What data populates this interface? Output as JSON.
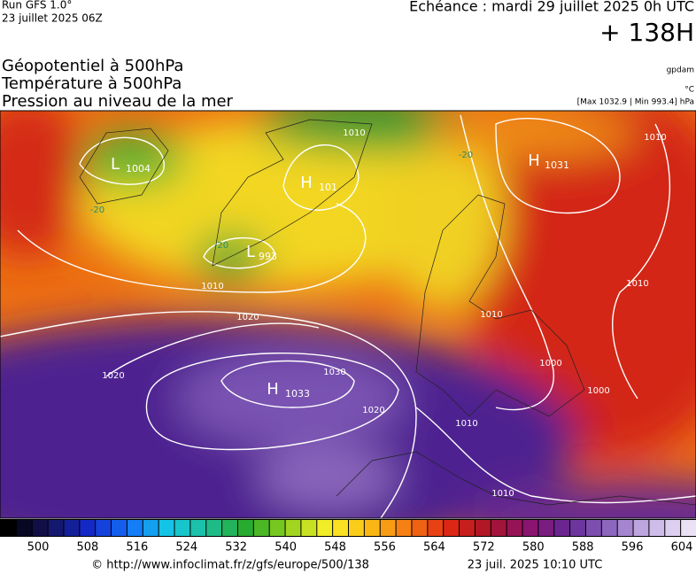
{
  "header": {
    "run": "Run GFS 1.0°",
    "run_date": "23 juillet 2025 06Z",
    "forecast": "Echéance : mardi 29 juillet 2025 0h UTC",
    "lead": "+ 138H",
    "fields": [
      "Géopotentiel à 500hPa",
      "Température à 500hPa",
      "Pression au niveau de la mer"
    ],
    "unit_geopotential": "gpdam",
    "unit_temperature": "°C",
    "pressure_range": "[Max 1032.9 | Min 993.4] hPa"
  },
  "map": {
    "centers": [
      {
        "letter": "L",
        "value": "1004"
      },
      {
        "letter": "H",
        "value": "1031"
      },
      {
        "letter": "H",
        "value": "1033"
      },
      {
        "letter": "L",
        "value": "993"
      },
      {
        "letter": "H",
        "value": "101"
      }
    ],
    "isobar_labels": [
      "1020",
      "1020",
      "1030",
      "1020",
      "1010",
      "1010",
      "1010",
      "1010",
      "1010",
      "1000",
      "1000",
      "1010",
      "1010"
    ],
    "temperature_labels": [
      "-20",
      "-20",
      "-20"
    ]
  },
  "colorbar": {
    "labels": [
      500,
      508,
      516,
      524,
      532,
      540,
      548,
      556,
      564,
      572,
      580,
      588,
      596,
      604
    ]
  },
  "footer": {
    "source": "© http://www.infoclimat.fr/z/gfs/europe/500/138",
    "timestamp": "23 juil. 2025 10:10 UTC"
  }
}
